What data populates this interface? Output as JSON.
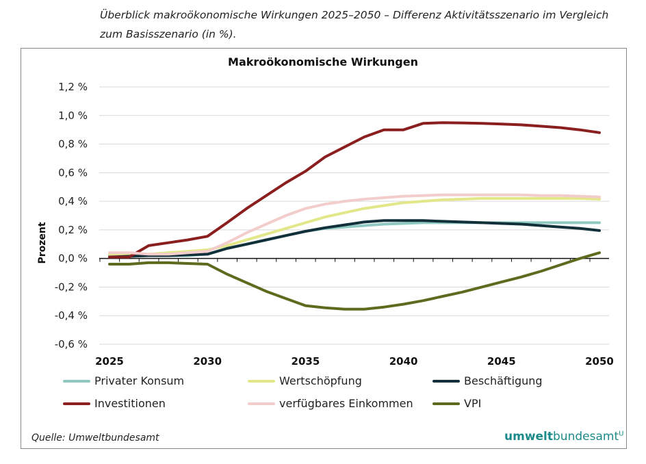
{
  "caption": "Überblick makroökonomische Wirkungen 2025–2050 – Differenz Aktivitätsszenario im Vergleich zum Basisszenario (in %).",
  "source": "Quelle: Umweltbundesamt",
  "logo": {
    "bold": "umwelt",
    "light": "bundesamt",
    "mark": "U"
  },
  "chart_data": {
    "type": "line",
    "title": "Makroökonomische Wirkungen",
    "ylabel": "Prozent",
    "xlabel": "",
    "ylim": [
      -0.6,
      1.2
    ],
    "yticks": [
      -0.6,
      -0.4,
      -0.2,
      0.0,
      0.2,
      0.4,
      0.6,
      0.8,
      1.0,
      1.2
    ],
    "ytick_labels": [
      "-0,6 %",
      "-0,4 %",
      "-0,2 %",
      "0,0 %",
      "0,2 %",
      "0,4 %",
      "0,6 %",
      "0,8 %",
      "1,0 %",
      "1,2 %"
    ],
    "xticks": [
      2025,
      2030,
      2035,
      2040,
      2045,
      2050
    ],
    "xtick_labels": [
      "2025",
      "2030",
      "2035",
      "2040",
      "2045",
      "2050"
    ],
    "grid": true,
    "legend_placement": "bottom",
    "x": [
      2025,
      2026,
      2027,
      2028,
      2029,
      2030,
      2031,
      2032,
      2033,
      2034,
      2035,
      2036,
      2037,
      2038,
      2039,
      2040,
      2041,
      2042,
      2043,
      2044,
      2045,
      2046,
      2047,
      2048,
      2049,
      2050
    ],
    "series": [
      {
        "name": "Privater Konsum",
        "color": "#8fc9c1",
        "values": [
          0.02,
          0.02,
          0.02,
          0.02,
          0.02,
          0.03,
          0.07,
          0.1,
          0.13,
          0.16,
          0.19,
          0.21,
          0.22,
          0.23,
          0.24,
          0.245,
          0.25,
          0.25,
          0.25,
          0.25,
          0.25,
          0.25,
          0.25,
          0.25,
          0.25,
          0.25
        ]
      },
      {
        "name": "Wertschöpfung",
        "color": "#e2e889",
        "values": [
          0.03,
          0.03,
          0.03,
          0.04,
          0.05,
          0.06,
          0.09,
          0.13,
          0.17,
          0.21,
          0.25,
          0.29,
          0.32,
          0.35,
          0.37,
          0.39,
          0.4,
          0.41,
          0.415,
          0.42,
          0.42,
          0.42,
          0.42,
          0.42,
          0.42,
          0.415
        ]
      },
      {
        "name": "Beschäftigung",
        "color": "#12303a",
        "values": [
          0.01,
          0.015,
          0.02,
          0.02,
          0.025,
          0.03,
          0.07,
          0.1,
          0.13,
          0.16,
          0.19,
          0.215,
          0.235,
          0.255,
          0.265,
          0.265,
          0.265,
          0.26,
          0.255,
          0.25,
          0.245,
          0.24,
          0.23,
          0.22,
          0.21,
          0.195
        ]
      },
      {
        "name": "Investitionen",
        "color": "#8b1f1f",
        "values": [
          0.01,
          0.01,
          0.09,
          0.11,
          0.13,
          0.155,
          0.25,
          0.35,
          0.44,
          0.53,
          0.61,
          0.71,
          0.78,
          0.85,
          0.9,
          0.9,
          0.945,
          0.95,
          0.948,
          0.945,
          0.94,
          0.935,
          0.925,
          0.915,
          0.9,
          0.88
        ]
      },
      {
        "name": "verfügbares Einkommen",
        "color": "#f3cdcc",
        "values": [
          0.04,
          0.04,
          0.03,
          0.03,
          0.04,
          0.05,
          0.11,
          0.18,
          0.24,
          0.3,
          0.35,
          0.38,
          0.4,
          0.415,
          0.425,
          0.435,
          0.44,
          0.445,
          0.445,
          0.445,
          0.445,
          0.445,
          0.44,
          0.44,
          0.435,
          0.43
        ]
      },
      {
        "name": "VPI",
        "color": "#5e6b1e",
        "values": [
          -0.04,
          -0.04,
          -0.03,
          -0.03,
          -0.035,
          -0.04,
          -0.11,
          -0.17,
          -0.23,
          -0.28,
          -0.33,
          -0.345,
          -0.355,
          -0.355,
          -0.34,
          -0.32,
          -0.295,
          -0.265,
          -0.235,
          -0.2,
          -0.165,
          -0.13,
          -0.09,
          -0.045,
          0.0,
          0.04
        ]
      }
    ]
  }
}
